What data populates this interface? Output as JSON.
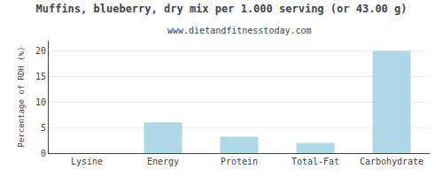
{
  "chart_data": {
    "type": "bar",
    "title": "Muffins, blueberry, dry mix per 1.000 serving (or 43.00 g)",
    "subtitle": "www.dietandfitnesstoday.com",
    "categories": [
      "Lysine",
      "Energy",
      "Protein",
      "Total-Fat",
      "Carbohydrate"
    ],
    "values": [
      0,
      6,
      3.2,
      2,
      20
    ],
    "color": "#aed8e6",
    "ylabel": "Percentage of RDH (%)",
    "ylim": [
      0,
      22
    ],
    "yticks": [
      0,
      5,
      10,
      15,
      20
    ],
    "grid": true
  }
}
